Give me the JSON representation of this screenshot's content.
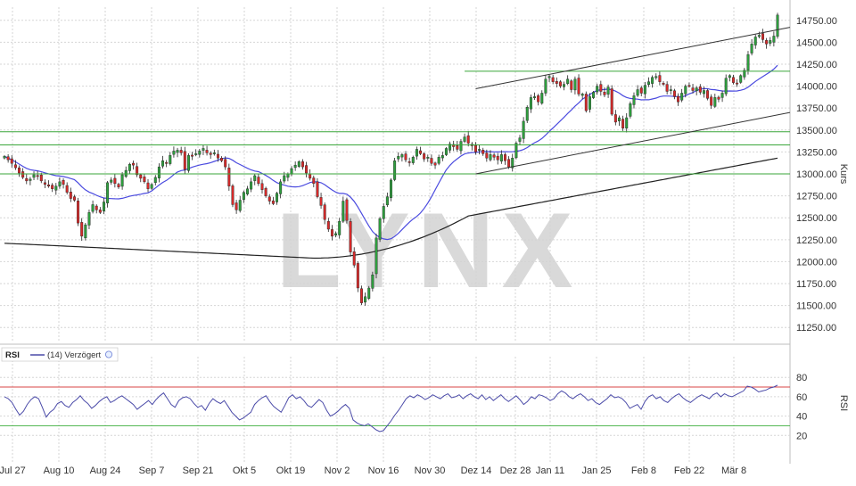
{
  "watermark": "LYNX",
  "colors": {
    "up": "#2e9e3e",
    "down": "#d62a2a",
    "sma_short": "#4a4adf",
    "sma_long": "#222222",
    "support": "#3aa63a",
    "rsi_line": "#4a4aa8",
    "rsi_upper": "#d84545",
    "rsi_lower": "#55b855",
    "grid": "#d6d6d6"
  },
  "chart_data": [
    {
      "type": "candlestick",
      "ylabel": "Kurs",
      "ylim": [
        11100,
        14900
      ],
      "yticks": [
        "14750.00",
        "14500.00",
        "14250.00",
        "14000.00",
        "13750.00",
        "13500.00",
        "13250.00",
        "13000.00",
        "12750.00",
        "12500.00",
        "12250.00",
        "12000.00",
        "11750.00",
        "11500.00",
        "11250.00"
      ],
      "x_labels": [
        "Jul 27",
        "Aug 10",
        "Aug 24",
        "Sep 7",
        "Sep 21",
        "Okt 5",
        "Okt 19",
        "Nov 2",
        "Nov 16",
        "Nov 30",
        "Dez 14",
        "Dez 28",
        "Jan 11",
        "Jan 25",
        "Feb 8",
        "Feb 22",
        "Mär 8"
      ],
      "grid": true,
      "horizontal_levels": [
        13480,
        13330,
        13000,
        14170
      ],
      "channel": {
        "upper": [
          [
            "Dez 14",
            13970
          ],
          [
            "Mär 15",
            14670
          ]
        ],
        "lower": [
          [
            "Dez 14",
            13000
          ],
          [
            "Mär 15",
            13700
          ]
        ]
      },
      "closes": [
        13200,
        13160,
        13120,
        13070,
        13010,
        12960,
        12920,
        12940,
        12990,
        12980,
        12920,
        12880,
        12860,
        12830,
        12860,
        12910,
        12880,
        12790,
        12720,
        12700,
        12440,
        12290,
        12420,
        12560,
        12650,
        12590,
        12560,
        12680,
        12900,
        12930,
        12890,
        12850,
        12990,
        13040,
        13110,
        13100,
        12990,
        12950,
        12910,
        12830,
        12880,
        12960,
        13080,
        13150,
        13120,
        13210,
        13260,
        13270,
        13240,
        13050,
        13210,
        13200,
        13230,
        13260,
        13290,
        13240,
        13220,
        13240,
        13180,
        13150,
        13080,
        12860,
        12650,
        12590,
        12700,
        12790,
        12830,
        12910,
        12980,
        12890,
        12820,
        12750,
        12690,
        12660,
        12780,
        12910,
        12980,
        13000,
        13060,
        13100,
        13140,
        13080,
        13010,
        12950,
        12890,
        12740,
        12640,
        12480,
        12370,
        12290,
        12320,
        12460,
        12690,
        12470,
        12110,
        11960,
        11700,
        11530,
        11600,
        11700,
        11850,
        12270,
        12490,
        12630,
        12740,
        12930,
        13150,
        13200,
        13220,
        13160,
        13130,
        13190,
        13280,
        13230,
        13170,
        13190,
        13120,
        13100,
        13190,
        13210,
        13290,
        13340,
        13310,
        13280,
        13370,
        13420,
        13350,
        13320,
        13250,
        13280,
        13230,
        13180,
        13220,
        13190,
        13160,
        13220,
        13150,
        13080,
        13180,
        13350,
        13410,
        13600,
        13760,
        13870,
        13880,
        13820,
        13920,
        14080,
        14110,
        14050,
        14030,
        14000,
        14020,
        14080,
        13960,
        14080,
        13910,
        13910,
        13720,
        13880,
        13930,
        14000,
        13940,
        13900,
        13990,
        13680,
        13590,
        13640,
        13520,
        13640,
        13800,
        13890,
        13960,
        13920,
        14010,
        14050,
        14100,
        14110,
        14050,
        14020,
        13940,
        13960,
        13880,
        13820,
        13920,
        14000,
        14000,
        13950,
        13980,
        13930,
        13950,
        13860,
        13780,
        13870,
        13850,
        13920,
        14090,
        14120,
        14040,
        14030,
        14120,
        14180,
        14360,
        14480,
        14560,
        14580,
        14530,
        14480,
        14520,
        14570,
        14810
      ]
    },
    {
      "type": "line",
      "title": "RSI",
      "legend": "(14) Verzögert",
      "ylabel": "RSI",
      "ylim": [
        0,
        94
      ],
      "yticks": [
        80,
        60,
        40,
        20
      ],
      "levels": [
        70,
        30
      ],
      "values": [
        60,
        58,
        54,
        47,
        41,
        45,
        52,
        57,
        60,
        58,
        49,
        39,
        44,
        47,
        53,
        55,
        51,
        49,
        54,
        57,
        61,
        56,
        53,
        48,
        51,
        55,
        58,
        60,
        54,
        56,
        59,
        61,
        58,
        55,
        52,
        47,
        50,
        53,
        56,
        52,
        57,
        61,
        64,
        58,
        52,
        49,
        56,
        59,
        60,
        58,
        53,
        49,
        51,
        46,
        53,
        58,
        55,
        53,
        56,
        50,
        44,
        40,
        36,
        38,
        41,
        44,
        52,
        56,
        59,
        61,
        55,
        50,
        47,
        44,
        51,
        59,
        62,
        58,
        60,
        56,
        51,
        49,
        53,
        57,
        54,
        46,
        40,
        42,
        45,
        49,
        52,
        48,
        36,
        33,
        31,
        30,
        32,
        29,
        26,
        24,
        25,
        30,
        35,
        41,
        46,
        52,
        58,
        61,
        59,
        62,
        60,
        57,
        59,
        62,
        60,
        58,
        61,
        63,
        59,
        60,
        62,
        58,
        61,
        63,
        60,
        58,
        62,
        57,
        60,
        56,
        59,
        62,
        58,
        55,
        58,
        61,
        57,
        52,
        55,
        60,
        58,
        62,
        61,
        59,
        56,
        58,
        63,
        66,
        64,
        60,
        58,
        61,
        63,
        60,
        56,
        58,
        54,
        52,
        55,
        58,
        62,
        59,
        60,
        58,
        54,
        48,
        50,
        52,
        47,
        55,
        60,
        62,
        58,
        60,
        56,
        54,
        58,
        61,
        63,
        59,
        56,
        54,
        57,
        60,
        62,
        60,
        58,
        62,
        64,
        60,
        63,
        61,
        60,
        62,
        64,
        66,
        71,
        70,
        68,
        65,
        66,
        67,
        69,
        70,
        72
      ]
    }
  ]
}
